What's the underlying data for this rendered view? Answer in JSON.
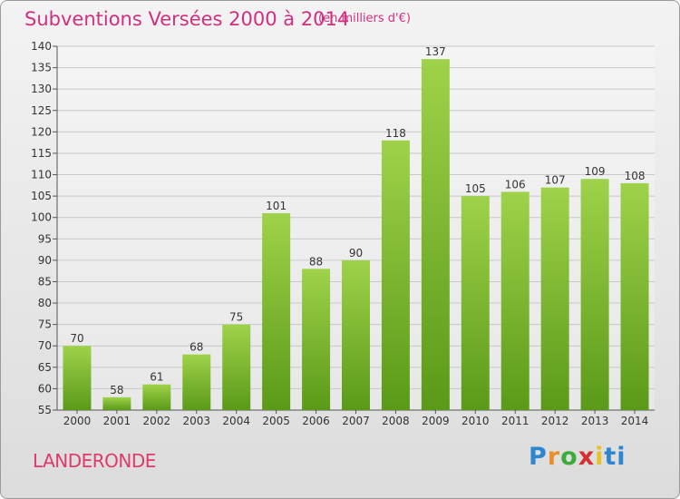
{
  "header": {
    "title": "Subventions Versées 2000 à 2014",
    "subtitle": "(en milliers d'€)"
  },
  "footer": {
    "commune": "LANDERONDE",
    "logo_letters": [
      "P",
      "r",
      "o",
      "x",
      "i",
      "t",
      "i"
    ],
    "logo_colors": [
      "#2e86d1",
      "#e8902c",
      "#3bab3b",
      "#d3312f",
      "#e8c02c",
      "#2e86d1",
      "#2e86d1"
    ]
  },
  "colors": {
    "title": "#d12f7f",
    "bar_top": "#9fd24a",
    "bar_bottom": "#5a9a18",
    "grid": "#c8c8c8"
  },
  "chart_data": {
    "type": "bar",
    "title": "Subventions Versées 2000 à 2014",
    "subtitle": "(en milliers d'€)",
    "categories": [
      "2000",
      "2001",
      "2002",
      "2003",
      "2004",
      "2005",
      "2006",
      "2007",
      "2008",
      "2009",
      "2010",
      "2011",
      "2012",
      "2013",
      "2014"
    ],
    "values": [
      70,
      58,
      61,
      68,
      75,
      101,
      88,
      90,
      118,
      137,
      105,
      106,
      107,
      109,
      108
    ],
    "ylim": [
      55,
      140
    ],
    "yticks": [
      55,
      60,
      65,
      70,
      75,
      80,
      85,
      90,
      95,
      100,
      105,
      110,
      115,
      120,
      125,
      130,
      135,
      140
    ],
    "grid": true,
    "xlabel": "",
    "ylabel": ""
  }
}
